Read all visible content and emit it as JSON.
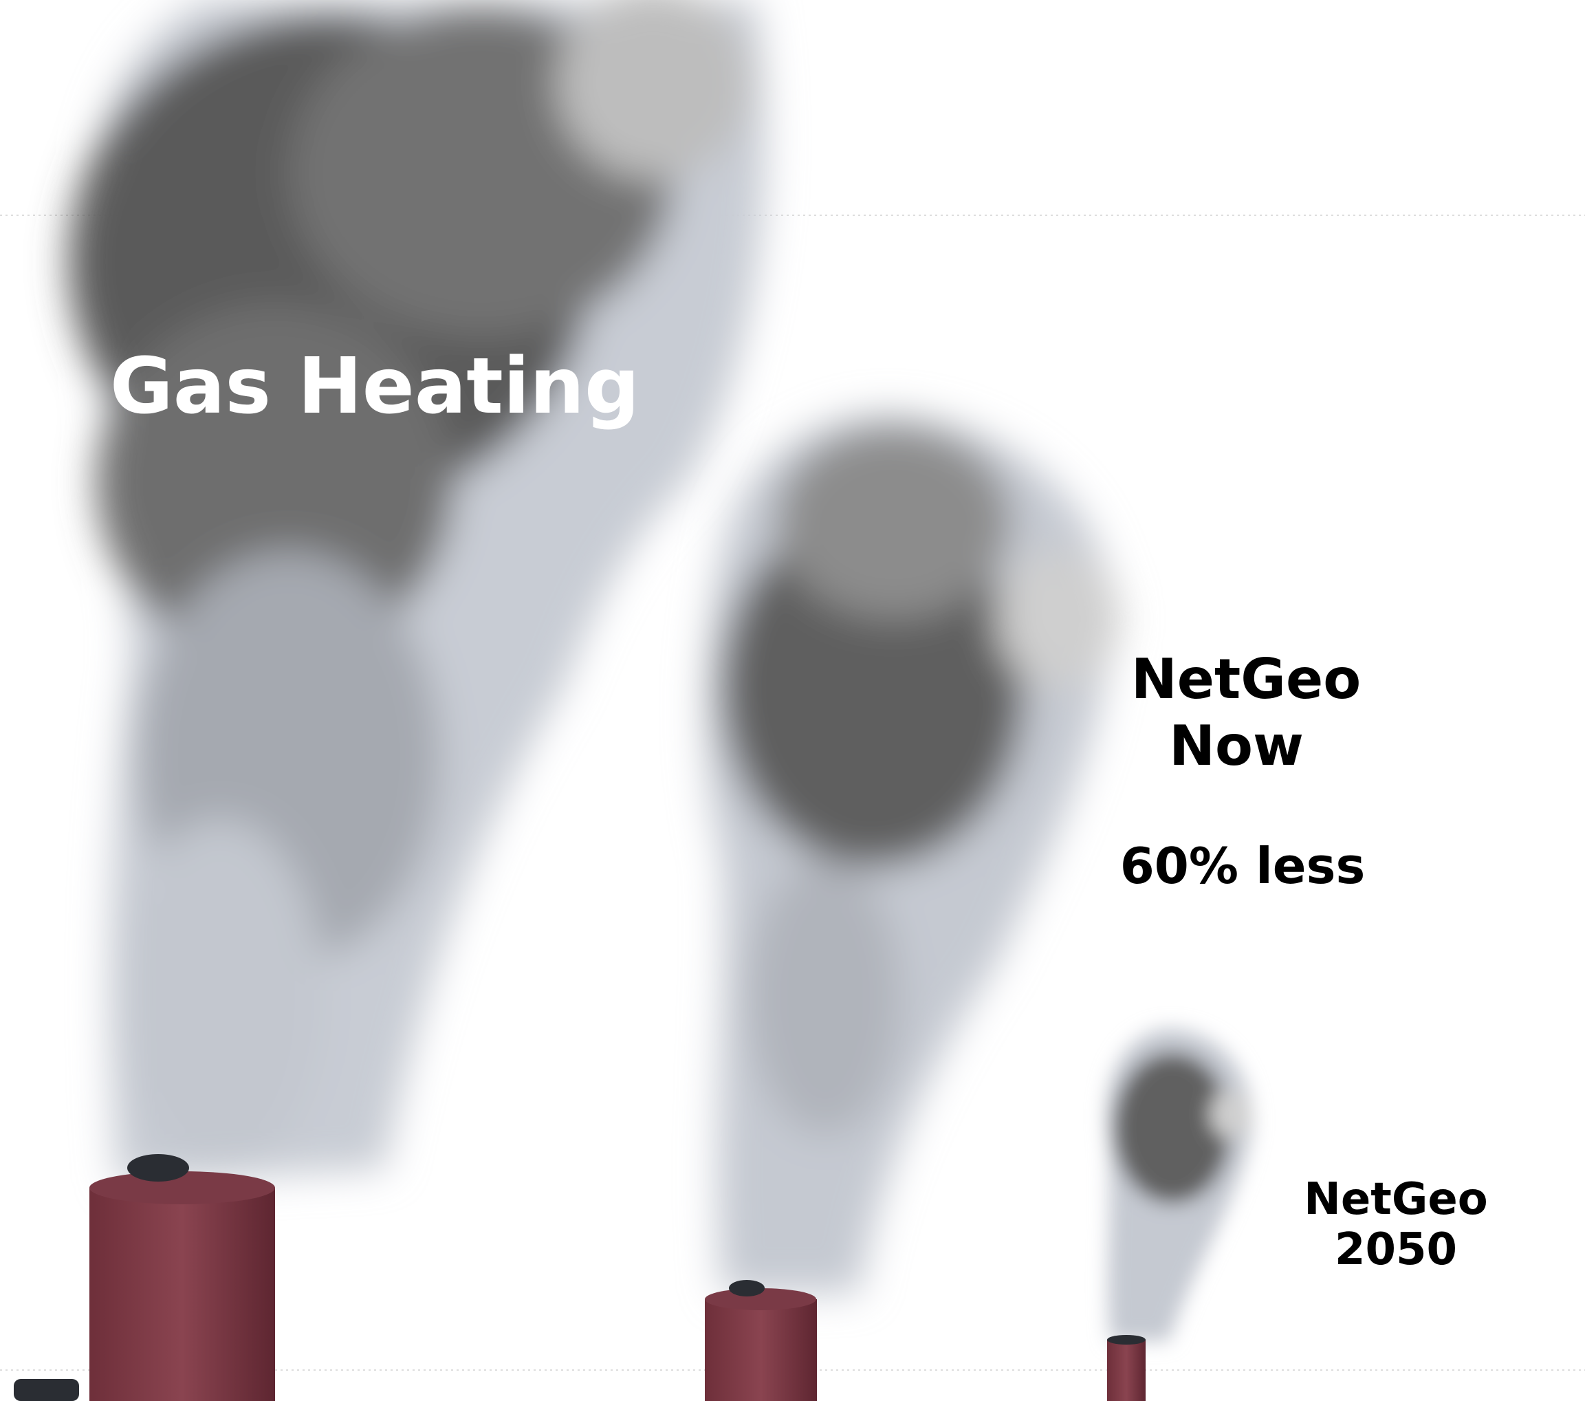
{
  "labels": {
    "gas_heating": "Gas Heating",
    "netgeo_now": [
      "NetGeo",
      "Now"
    ],
    "netgeo_now_note": "60% less",
    "netgeo_2050": [
      "NetGeo",
      "2050"
    ]
  }
}
